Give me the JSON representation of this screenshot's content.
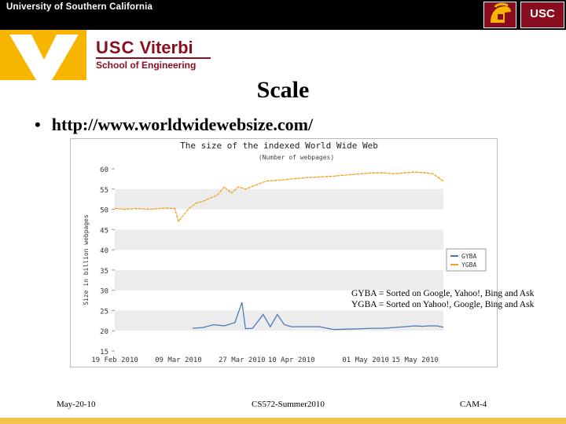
{
  "header": {
    "university": "University of Southern California",
    "usc_logo": "USC",
    "viterbi_usc": "USC",
    "viterbi_name": "Viterbi",
    "viterbi_school": "School of Engineering",
    "brand_colors": {
      "cardinal": "#8a0d1f",
      "gold": "#f7b500"
    }
  },
  "slide": {
    "title": "Scale",
    "bullet": "http://www.worldwidewebsize.com/"
  },
  "chart_data": {
    "type": "line",
    "title": "The size of the indexed World Wide Web",
    "subtitle": "(Number of webpages)",
    "ylabel": "Size in billion webpages",
    "ylim": [
      15,
      60
    ],
    "yticks": [
      15,
      20,
      25,
      30,
      35,
      40,
      45,
      50,
      55,
      60
    ],
    "x_tick_labels": [
      "19 Feb 2010",
      "09 Mar 2010",
      "27 Mar 2010",
      "10 Apr 2010",
      "01 May 2010",
      "15 May 2010"
    ],
    "x_range": [
      "2010-02-19",
      "2010-05-23"
    ],
    "grid": "horizontal bands",
    "legend_position": "right-middle",
    "series": [
      {
        "name": "GYBA",
        "color": "#4a78b8",
        "x": [
          "2010-03-13",
          "2010-03-16",
          "2010-03-19",
          "2010-03-22",
          "2010-03-25",
          "2010-03-27",
          "2010-03-28",
          "2010-03-30",
          "2010-04-02",
          "2010-04-04",
          "2010-04-06",
          "2010-04-08",
          "2010-04-10",
          "2010-04-14",
          "2010-04-18",
          "2010-04-22",
          "2010-04-26",
          "2010-04-30",
          "2010-05-03",
          "2010-05-06",
          "2010-05-09",
          "2010-05-12",
          "2010-05-15",
          "2010-05-17",
          "2010-05-19",
          "2010-05-21",
          "2010-05-23"
        ],
        "values": [
          20.6,
          20.8,
          21.5,
          21.2,
          22.0,
          27.0,
          20.5,
          20.6,
          24.0,
          21.0,
          24.0,
          21.5,
          21.0,
          21.0,
          21.0,
          20.3,
          20.4,
          20.5,
          20.6,
          20.6,
          20.8,
          21.0,
          21.2,
          21.1,
          21.2,
          21.2,
          20.9
        ]
      },
      {
        "name": "YGBA",
        "color": "#f0a020",
        "x": [
          "2010-02-19",
          "2010-02-22",
          "2010-02-25",
          "2010-03-01",
          "2010-03-05",
          "2010-03-08",
          "2010-03-09",
          "2010-03-12",
          "2010-03-14",
          "2010-03-16",
          "2010-03-20",
          "2010-03-22",
          "2010-03-24",
          "2010-03-26",
          "2010-03-28",
          "2010-03-31",
          "2010-04-03",
          "2010-04-07",
          "2010-04-10",
          "2010-04-14",
          "2010-04-18",
          "2010-04-22",
          "2010-04-26",
          "2010-04-30",
          "2010-05-03",
          "2010-05-06",
          "2010-05-09",
          "2010-05-12",
          "2010-05-15",
          "2010-05-18",
          "2010-05-20",
          "2010-05-23"
        ],
        "values": [
          50.2,
          50.0,
          50.2,
          50.0,
          50.3,
          50.2,
          47.0,
          50.2,
          51.5,
          52.0,
          53.5,
          55.5,
          54.0,
          55.5,
          55.0,
          56.0,
          57.0,
          57.2,
          57.5,
          57.8,
          58.0,
          58.2,
          58.5,
          58.8,
          59.0,
          59.0,
          58.8,
          59.0,
          59.2,
          59.0,
          58.8,
          57.0
        ]
      }
    ],
    "annotations": [
      "GYBA = Sorted on Google, Yahoo!, Bing and Ask",
      "YGBA = Sorted on Yahoo!, Google, Bing and Ask"
    ]
  },
  "footer": {
    "date": "May-20-10",
    "course": "CS572-Summer2010",
    "page": "CAM-4"
  }
}
